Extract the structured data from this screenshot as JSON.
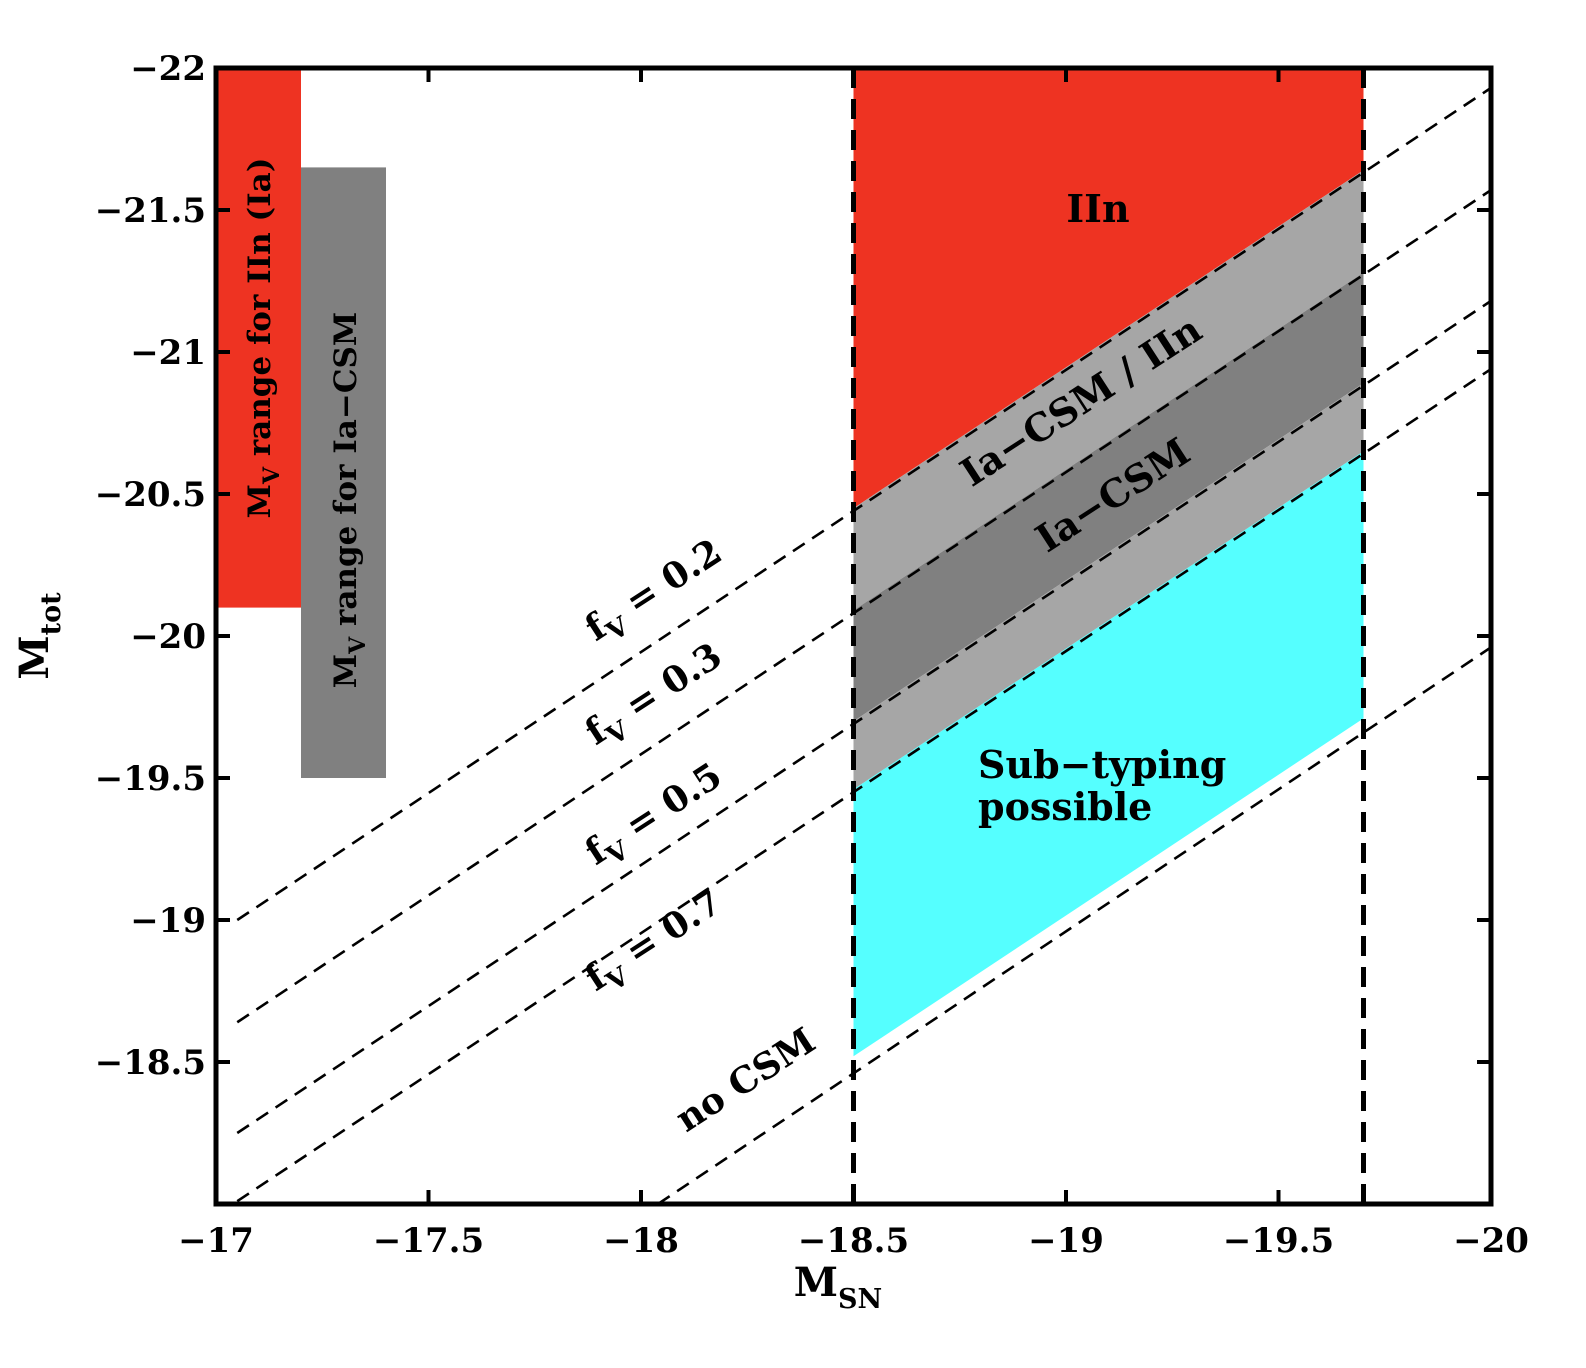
{
  "chart_data": {
    "type": "area",
    "xlabel": "M",
    "xlabel_sub": "SN",
    "ylabel": "M",
    "ylabel_sub": "tot",
    "xlim": [
      -17,
      -20
    ],
    "ylim": [
      -18,
      -22
    ],
    "x_ticks": [
      -17,
      -17.5,
      -18,
      -18.5,
      -19,
      -19.5,
      -20
    ],
    "x_tick_labels": [
      "−17",
      "−17.5",
      "−18",
      "−18.5",
      "−19",
      "−19.5",
      "−20"
    ],
    "y_ticks": [
      -18.5,
      -19,
      -19.5,
      -20,
      -20.5,
      -21,
      -21.5,
      -22
    ],
    "y_tick_labels": [
      "−18.5",
      "−19",
      "−19.5",
      "−20",
      "−20.5",
      "−21",
      "−21.5",
      "−22"
    ],
    "grid": false,
    "colors": {
      "iin": "#ee3322",
      "ia_csm_iin": "#a6a6a6",
      "ia_csm": "#808080",
      "subtyping": "#55ffff",
      "bar_iin": "#ee3322",
      "bar_ia_csm": "#808080",
      "lines": "#000000"
    },
    "vertical_lines": [
      -18.5,
      -19.7
    ],
    "dashed_lines": [
      {
        "f_v": 0.2,
        "points": [
          [
            -17.05,
            -19.0
          ],
          [
            -20,
            -21.93
          ]
        ]
      },
      {
        "f_v": 0.3,
        "points": [
          [
            -17.05,
            -18.64
          ],
          [
            -20,
            -21.57
          ]
        ]
      },
      {
        "f_v": 0.5,
        "points": [
          [
            -17.05,
            -18.25
          ],
          [
            -20,
            -21.18
          ]
        ]
      },
      {
        "f_v": 0.7,
        "points": [
          [
            -17.05,
            -18.01
          ],
          [
            -20,
            -20.94
          ]
        ]
      },
      {
        "f_v": 0,
        "points": [
          [
            -18.04,
            -18.0
          ],
          [
            -20,
            -19.96
          ]
        ]
      }
    ],
    "line_labels": [
      {
        "prefix": "f",
        "sub": "V",
        "suffix": " = 0.2"
      },
      {
        "prefix": "f",
        "sub": "V",
        "suffix": " = 0.3"
      },
      {
        "prefix": "f",
        "sub": "V",
        "suffix": " = 0.5"
      },
      {
        "prefix": "f",
        "sub": "V",
        "suffix": " = 0.7"
      },
      {
        "prefix": "no CSM",
        "sub": "",
        "suffix": ""
      }
    ],
    "regions": [
      {
        "name": "IIn",
        "label": "IIn",
        "polygon": [
          [
            -18.5,
            -22
          ],
          [
            -19.7,
            -22
          ],
          [
            -19.7,
            -21.64
          ],
          [
            -18.5,
            -20.45
          ]
        ]
      },
      {
        "name": "Ia-CSM / IIn",
        "label": "Ia−CSM / IIn",
        "polygon": [
          [
            -18.5,
            -20.45
          ],
          [
            -19.7,
            -21.64
          ],
          [
            -19.7,
            -21.28
          ],
          [
            -18.5,
            -20.09
          ]
        ]
      },
      {
        "name": "Ia-CSM",
        "label": "Ia−CSM",
        "polygon": [
          [
            -18.5,
            -20.09
          ],
          [
            -19.7,
            -21.28
          ],
          [
            -19.7,
            -20.89
          ],
          [
            -18.5,
            -19.7
          ]
        ]
      },
      {
        "name": "Ia-CSM lower",
        "label": "",
        "polygon": [
          [
            -18.5,
            -19.7
          ],
          [
            -19.7,
            -20.89
          ],
          [
            -19.7,
            -20.65
          ],
          [
            -18.5,
            -19.46
          ]
        ]
      },
      {
        "name": "Sub-typing possible",
        "label": [
          "Sub−typing",
          "possible"
        ],
        "polygon": [
          [
            -18.5,
            -19.46
          ],
          [
            -19.7,
            -20.65
          ],
          [
            -19.7,
            -19.71
          ],
          [
            -18.5,
            -18.52
          ]
        ]
      }
    ],
    "range_bars": [
      {
        "name": "MV range for IIn (Ia)",
        "x_range": [
          -17,
          -17.2
        ],
        "y_range": [
          -20.1,
          -22
        ],
        "label_prefix": "M",
        "label_sub": "V",
        "label_suffix": " range for IIn (Ia)"
      },
      {
        "name": "MV range for Ia-CSM",
        "x_range": [
          -17.2,
          -17.4
        ],
        "y_range": [
          -19.5,
          -21.65
        ],
        "label_prefix": "M",
        "label_sub": "V",
        "label_suffix": " range for Ia−CSM"
      }
    ]
  }
}
